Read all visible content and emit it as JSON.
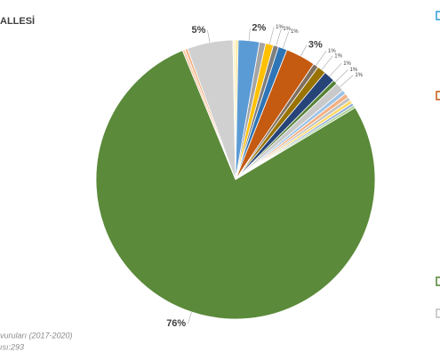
{
  "chart_data": {
    "type": "pie",
    "title": "ALLESİ",
    "notes": [
      "vuruları (2017-2020)",
      "ısı:293"
    ],
    "values": [
      0.3,
      2.4,
      0.7,
      0.9,
      0.6,
      1.0,
      3.4,
      0.6,
      1.0,
      1.3,
      0.5,
      1.0,
      0.5,
      0.5,
      0.4,
      0.4,
      0.3,
      0.3,
      76.0,
      0.3,
      0.3,
      5.2,
      0.3
    ],
    "value_labels": [
      null,
      "2%",
      null,
      "1%",
      "1%",
      "1%",
      "3%",
      "1%",
      "1%",
      "1%",
      "1%",
      "1%",
      null,
      null,
      null,
      null,
      null,
      null,
      "76%",
      null,
      null,
      "5%",
      null
    ],
    "colors": [
      "#ffe699",
      "#5b9bd5",
      "#a5a5a5",
      "#ffc000",
      "#7f7f7f",
      "#2e75b6",
      "#c55a11",
      "#7f6f5f",
      "#997300",
      "#264478",
      "#548235",
      "#c9c9c9",
      "#9dc3e6",
      "#f4b183",
      "#bfbfbf",
      "#ffd966",
      "#8faadc",
      "#a9d18e",
      "#5b8a3a",
      "#f8cbad",
      "#f4b183",
      "#d0d0d0",
      "#fff2cc"
    ]
  }
}
